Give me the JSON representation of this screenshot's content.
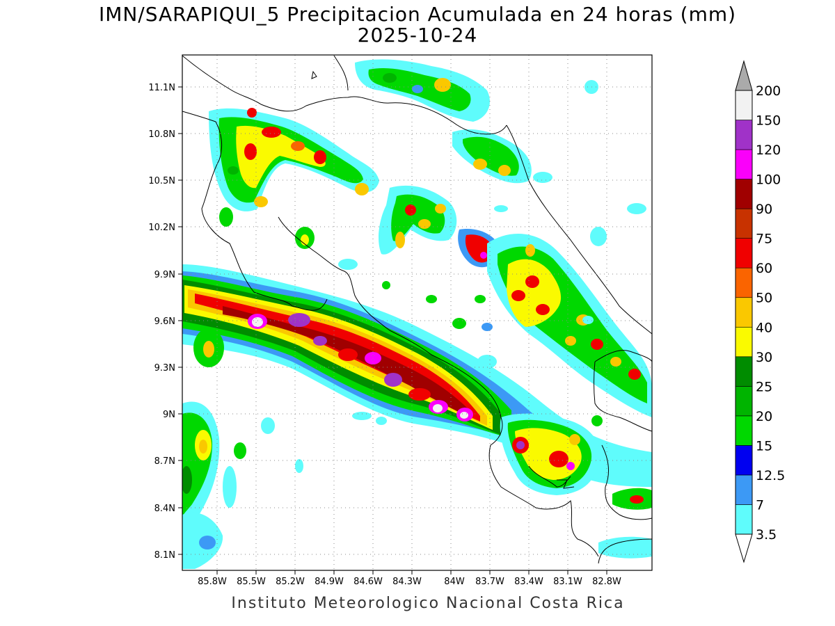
{
  "title_line1": "IMN/SARAPIQUI_5 Precipitacion Acumulada en 24 horas (mm)",
  "title_line2": "2025-10-24",
  "footer": "Instituto Meteorologico Nacional Costa Rica",
  "axes": {
    "lat_labels": [
      "11.1N",
      "10.8N",
      "10.5N",
      "10.2N",
      "9.9N",
      "9.6N",
      "9.3N",
      "9N",
      "8.7N",
      "8.4N",
      "8.1N"
    ],
    "lon_labels": [
      "85.8W",
      "85.5W",
      "85.2W",
      "84.9W",
      "84.6W",
      "84.3W",
      "84W",
      "83.7W",
      "83.4W",
      "83.1W",
      "82.8W"
    ],
    "grid": "dotted"
  },
  "colorbar": {
    "levels": [
      "3.5",
      "7",
      "12.5",
      "15",
      "20",
      "25",
      "30",
      "40",
      "50",
      "60",
      "75",
      "90",
      "100",
      "120",
      "150",
      "200"
    ],
    "colors": [
      "#5ffcfc",
      "#3c99f5",
      "#0000f0",
      "#00d800",
      "#00b400",
      "#008c00",
      "#fafa00",
      "#fac800",
      "#fa6400",
      "#f00000",
      "#c83200",
      "#a00000",
      "#fa00fa",
      "#a032c8",
      "#f2f2f2",
      "#aaaaaa"
    ],
    "min_arrow_color": "#ffffff",
    "max_arrow_color": "#aaaaaa"
  },
  "map_colors": {
    "outline": "#000000",
    "background": "#ffffff"
  }
}
